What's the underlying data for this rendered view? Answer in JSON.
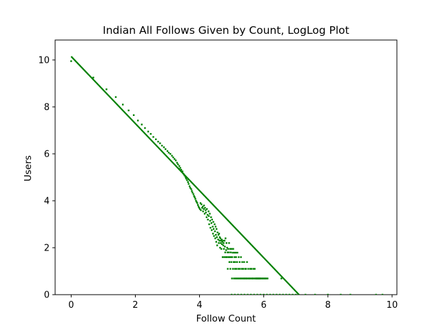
{
  "chart_data": {
    "type": "scatter",
    "title": "Indian All Follows Given by Count, LogLog Plot",
    "xlabel": "Follow Count",
    "ylabel": "Users",
    "xlim": [
      -0.5,
      10.15
    ],
    "ylim": [
      0,
      10.85
    ],
    "xticks": [
      0,
      2,
      4,
      6,
      8,
      10
    ],
    "yticks": [
      0,
      2,
      4,
      6,
      8,
      10
    ],
    "grid": false,
    "colors": {
      "series": "#008000",
      "axes": "#000000",
      "background": "#ffffff"
    },
    "series": [
      {
        "type": "scatter",
        "points": [
          [
            0,
            9.95
          ],
          [
            0.69,
            9.25
          ],
          [
            1.1,
            8.75
          ],
          [
            1.39,
            8.42
          ],
          [
            1.61,
            8.1
          ],
          [
            1.79,
            7.85
          ],
          [
            1.95,
            7.65
          ],
          [
            2.08,
            7.42
          ],
          [
            2.2,
            7.25
          ],
          [
            2.3,
            7.1
          ],
          [
            2.4,
            6.95
          ],
          [
            2.48,
            6.85
          ],
          [
            2.56,
            6.72
          ],
          [
            2.64,
            6.62
          ],
          [
            2.71,
            6.52
          ],
          [
            2.77,
            6.45
          ],
          [
            2.83,
            6.35
          ],
          [
            2.89,
            6.28
          ],
          [
            2.94,
            6.2
          ],
          [
            3.0,
            6.12
          ],
          [
            3.04,
            6.05
          ],
          [
            3.09,
            6.0
          ],
          [
            3.14,
            5.92
          ],
          [
            3.18,
            5.85
          ],
          [
            3.22,
            5.78
          ],
          [
            3.26,
            5.72
          ],
          [
            3.3,
            5.62
          ],
          [
            3.33,
            5.55
          ],
          [
            3.37,
            5.48
          ],
          [
            3.4,
            5.4
          ],
          [
            3.43,
            5.32
          ],
          [
            3.47,
            5.25
          ],
          [
            3.5,
            5.15
          ],
          [
            3.53,
            5.08
          ],
          [
            3.56,
            5.02
          ],
          [
            3.58,
            4.95
          ],
          [
            3.61,
            4.88
          ],
          [
            3.64,
            4.8
          ],
          [
            3.66,
            4.72
          ],
          [
            3.69,
            4.62
          ],
          [
            3.71,
            4.55
          ],
          [
            3.74,
            4.5
          ],
          [
            3.76,
            4.42
          ],
          [
            3.78,
            4.35
          ],
          [
            3.81,
            4.28
          ],
          [
            3.83,
            4.2
          ],
          [
            3.85,
            4.15
          ],
          [
            3.87,
            4.08
          ],
          [
            3.89,
            4.0
          ],
          [
            3.91,
            3.95
          ],
          [
            3.93,
            3.9
          ],
          [
            3.95,
            3.82
          ],
          [
            3.97,
            3.75
          ],
          [
            3.99,
            3.7
          ],
          [
            4.01,
            3.65
          ],
          [
            4.03,
            3.9
          ],
          [
            4.04,
            3.6
          ],
          [
            4.06,
            3.85
          ],
          [
            4.08,
            3.7
          ],
          [
            4.1,
            3.75
          ],
          [
            4.11,
            3.55
          ],
          [
            4.13,
            3.65
          ],
          [
            4.14,
            3.8
          ],
          [
            4.16,
            3.45
          ],
          [
            4.17,
            3.7
          ],
          [
            4.19,
            3.6
          ],
          [
            4.2,
            3.5
          ],
          [
            4.22,
            3.3
          ],
          [
            4.23,
            3.65
          ],
          [
            4.25,
            3.4
          ],
          [
            4.26,
            3.2
          ],
          [
            4.28,
            3.55
          ],
          [
            4.29,
            3.35
          ],
          [
            4.3,
            3.0
          ],
          [
            4.32,
            3.45
          ],
          [
            4.33,
            3.15
          ],
          [
            4.34,
            2.85
          ],
          [
            4.36,
            3.3
          ],
          [
            4.37,
            3.05
          ],
          [
            4.38,
            2.75
          ],
          [
            4.39,
            3.2
          ],
          [
            4.41,
            2.9
          ],
          [
            4.42,
            2.6
          ],
          [
            4.43,
            3.1
          ],
          [
            4.44,
            2.8
          ],
          [
            4.45,
            2.5
          ],
          [
            4.47,
            3.0
          ],
          [
            4.48,
            2.7
          ],
          [
            4.49,
            2.4
          ],
          [
            4.5,
            2.9
          ],
          [
            4.51,
            2.55
          ],
          [
            4.52,
            2.25
          ],
          [
            4.53,
            2.8
          ],
          [
            4.54,
            2.45
          ],
          [
            4.55,
            2.1
          ],
          [
            4.56,
            2.65
          ],
          [
            4.58,
            2.35
          ],
          [
            4.59,
            2.55
          ],
          [
            4.6,
            2.2
          ],
          [
            4.61,
            2.6
          ],
          [
            4.62,
            2.3
          ],
          [
            4.63,
            2.45
          ],
          [
            4.64,
            2.0
          ],
          [
            4.65,
            2.4
          ],
          [
            4.66,
            2.2
          ],
          [
            4.67,
            2.3
          ],
          [
            4.68,
            1.95
          ],
          [
            4.69,
            2.35
          ],
          [
            4.7,
            2.15
          ],
          [
            4.71,
            2.25
          ],
          [
            4.72,
            1.6
          ],
          [
            4.73,
            2.3
          ],
          [
            4.74,
            2.1
          ],
          [
            4.75,
            2.2
          ],
          [
            4.76,
            1.95
          ],
          [
            4.77,
            1.6
          ],
          [
            4.78,
            2.3
          ],
          [
            4.79,
            2.05
          ],
          [
            4.8,
            1.8
          ],
          [
            4.81,
            2.4
          ],
          [
            4.82,
            1.6
          ],
          [
            4.83,
            1.9
          ],
          [
            4.84,
            2.2
          ],
          [
            4.85,
            1.6
          ],
          [
            4.86,
            2.0
          ],
          [
            4.87,
            1.8
          ],
          [
            4.88,
            1.1
          ],
          [
            4.89,
            1.95
          ],
          [
            4.9,
            1.6
          ],
          [
            4.91,
            1.8
          ],
          [
            4.92,
            2.2
          ],
          [
            4.93,
            1.39
          ],
          [
            4.94,
            1.6
          ],
          [
            4.95,
            1.95
          ],
          [
            4.96,
            1.1
          ],
          [
            4.97,
            1.8
          ],
          [
            4.98,
            1.6
          ],
          [
            4.99,
            1.39
          ],
          [
            5.0,
            1.95
          ],
          [
            5.01,
            0.69
          ],
          [
            5.02,
            1.6
          ],
          [
            5.03,
            1.79
          ],
          [
            5.04,
            1.1
          ],
          [
            5.05,
            1.95
          ],
          [
            5.06,
            1.39
          ],
          [
            5.07,
            0.69
          ],
          [
            5.08,
            1.79
          ],
          [
            5.09,
            1.6
          ],
          [
            5.1,
            1.1
          ],
          [
            5.11,
            1.39
          ],
          [
            5.12,
            0.69
          ],
          [
            5.13,
            1.79
          ],
          [
            5.14,
            1.6
          ],
          [
            5.15,
            1.1
          ],
          [
            5.16,
            0.69
          ],
          [
            5.17,
            1.39
          ],
          [
            5.18,
            1.79
          ],
          [
            5.2,
            0.69
          ],
          [
            5.21,
            1.1
          ],
          [
            5.22,
            1.6
          ],
          [
            5.24,
            0.69
          ],
          [
            5.25,
            1.39
          ],
          [
            5.26,
            1.1
          ],
          [
            5.28,
            0.69
          ],
          [
            5.29,
            1.6
          ],
          [
            5.31,
            0.69
          ],
          [
            5.32,
            1.1
          ],
          [
            5.33,
            1.39
          ],
          [
            5.35,
            0.69
          ],
          [
            5.36,
            1.1
          ],
          [
            5.38,
            0.69
          ],
          [
            5.39,
            1.39
          ],
          [
            5.41,
            0.69
          ],
          [
            5.42,
            1.1
          ],
          [
            5.44,
            0.69
          ],
          [
            5.45,
            1.1
          ],
          [
            5.47,
            0.69
          ],
          [
            5.48,
            1.39
          ],
          [
            5.5,
            0.69
          ],
          [
            5.52,
            1.1
          ],
          [
            5.54,
            0.69
          ],
          [
            5.56,
            0.69
          ],
          [
            5.58,
            1.1
          ],
          [
            5.6,
            0.69
          ],
          [
            5.62,
            1.1
          ],
          [
            5.64,
            0.69
          ],
          [
            5.66,
            0.69
          ],
          [
            5.68,
            1.1
          ],
          [
            5.7,
            0.69
          ],
          [
            5.72,
            1.1
          ],
          [
            5.74,
            0.69
          ],
          [
            5.76,
            0.69
          ],
          [
            5.78,
            0.69
          ],
          [
            5.8,
            0.69
          ],
          [
            5.82,
            0.69
          ],
          [
            5.84,
            0.69
          ],
          [
            5.86,
            0.69
          ],
          [
            5.88,
            0.69
          ],
          [
            5.9,
            0.69
          ],
          [
            5.93,
            0.69
          ],
          [
            5.96,
            0.69
          ],
          [
            5.99,
            0.69
          ],
          [
            6.02,
            0.69
          ],
          [
            6.05,
            0.69
          ],
          [
            6.08,
            0.69
          ],
          [
            6.12,
            0.69
          ],
          [
            6.55,
            0.69
          ],
          [
            5.0,
            0
          ],
          [
            5.1,
            0
          ],
          [
            5.2,
            0
          ],
          [
            5.3,
            0
          ],
          [
            5.4,
            0
          ],
          [
            5.5,
            0
          ],
          [
            5.6,
            0
          ],
          [
            5.7,
            0
          ],
          [
            5.8,
            0
          ],
          [
            5.9,
            0
          ],
          [
            6.0,
            0
          ],
          [
            6.1,
            0
          ],
          [
            6.2,
            0
          ],
          [
            6.3,
            0
          ],
          [
            6.4,
            0
          ],
          [
            6.5,
            0
          ],
          [
            6.6,
            0
          ],
          [
            6.7,
            0
          ],
          [
            6.8,
            0
          ],
          [
            6.9,
            0
          ],
          [
            7.0,
            0
          ],
          [
            7.3,
            0
          ],
          [
            7.6,
            0
          ],
          [
            8.0,
            0
          ],
          [
            8.4,
            0
          ],
          [
            8.7,
            0
          ],
          [
            9.5,
            0
          ],
          [
            9.7,
            0
          ]
        ]
      },
      {
        "type": "line",
        "points": [
          [
            0,
            10.15
          ],
          [
            7.1,
            0
          ]
        ]
      }
    ]
  }
}
